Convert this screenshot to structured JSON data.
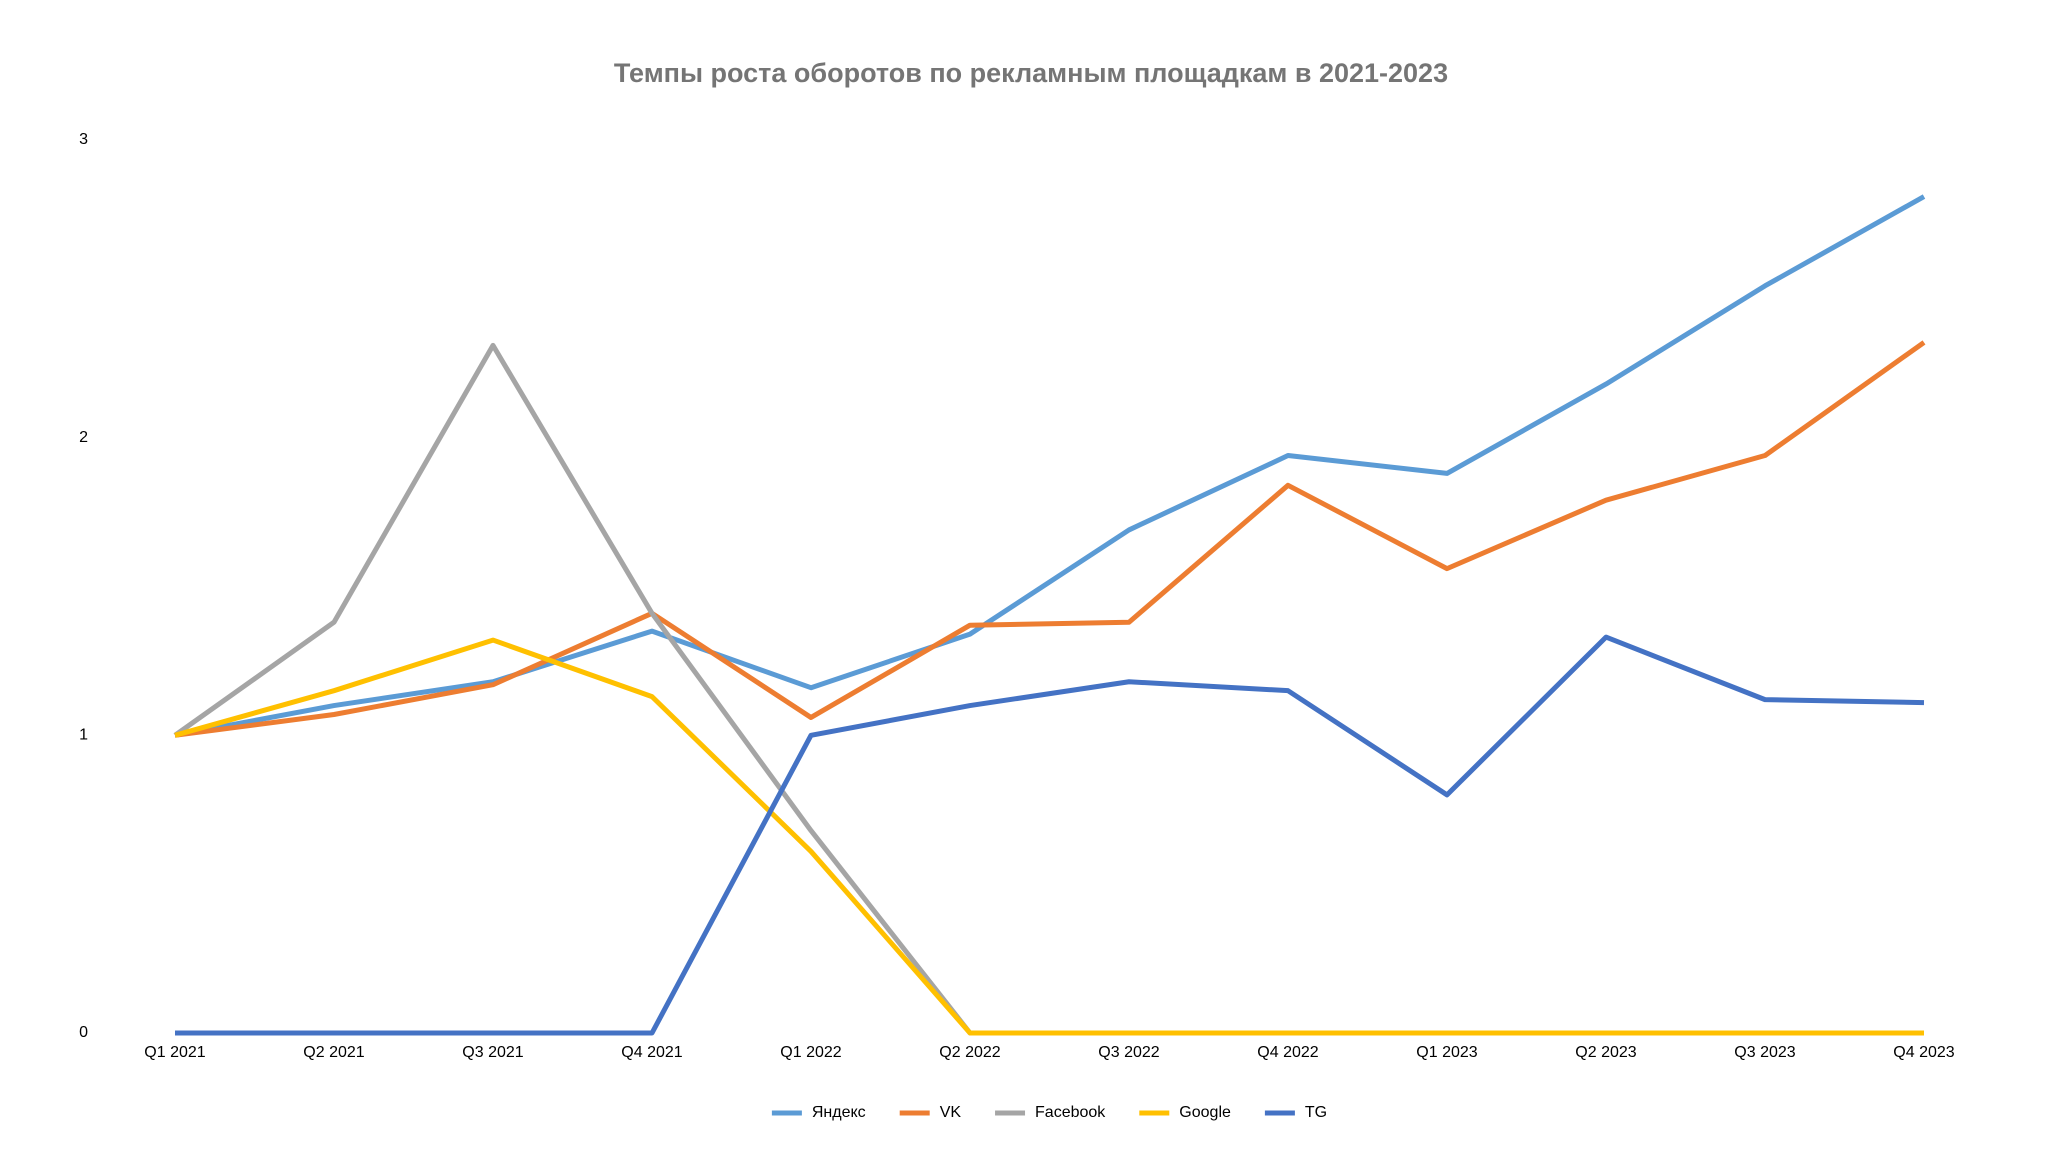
{
  "chart_data": {
    "type": "line",
    "title": "Темпы роста оборотов по рекламным площадкам в 2021-2023",
    "categories": [
      "Q1 2021",
      "Q2 2021",
      "Q3 2021",
      "Q4 2021",
      "Q1 2022",
      "Q2 2022",
      "Q3 2022",
      "Q4 2022",
      "Q1 2023",
      "Q2 2023",
      "Q3 2023",
      "Q4 2023"
    ],
    "series": [
      {
        "name": "Яндекс",
        "color": "#5b9bd5",
        "values": [
          1.0,
          1.1,
          1.18,
          1.35,
          1.16,
          1.34,
          1.69,
          1.94,
          1.88,
          2.18,
          2.51,
          2.81
        ]
      },
      {
        "name": "VK",
        "color": "#ed7d31",
        "values": [
          1.0,
          1.07,
          1.17,
          1.41,
          1.06,
          1.37,
          1.38,
          1.84,
          1.56,
          1.79,
          1.94,
          2.32
        ]
      },
      {
        "name": "Facebook",
        "color": "#a5a5a5",
        "values": [
          1.0,
          1.38,
          2.31,
          1.41,
          0.68,
          0,
          0,
          0,
          0,
          0,
          0,
          0
        ]
      },
      {
        "name": "Google",
        "color": "#ffc000",
        "values": [
          1.0,
          1.15,
          1.32,
          1.13,
          0.61,
          0,
          0,
          0,
          0,
          0,
          0,
          0
        ]
      },
      {
        "name": "TG",
        "color": "#4472c4",
        "values": [
          0,
          0,
          0,
          0,
          1.0,
          1.1,
          1.18,
          1.15,
          0.8,
          1.33,
          1.12,
          1.11
        ]
      }
    ],
    "ylim": [
      0,
      3
    ],
    "yticks": [
      0,
      1,
      2,
      3
    ],
    "grid": false,
    "legend": "bottom"
  }
}
